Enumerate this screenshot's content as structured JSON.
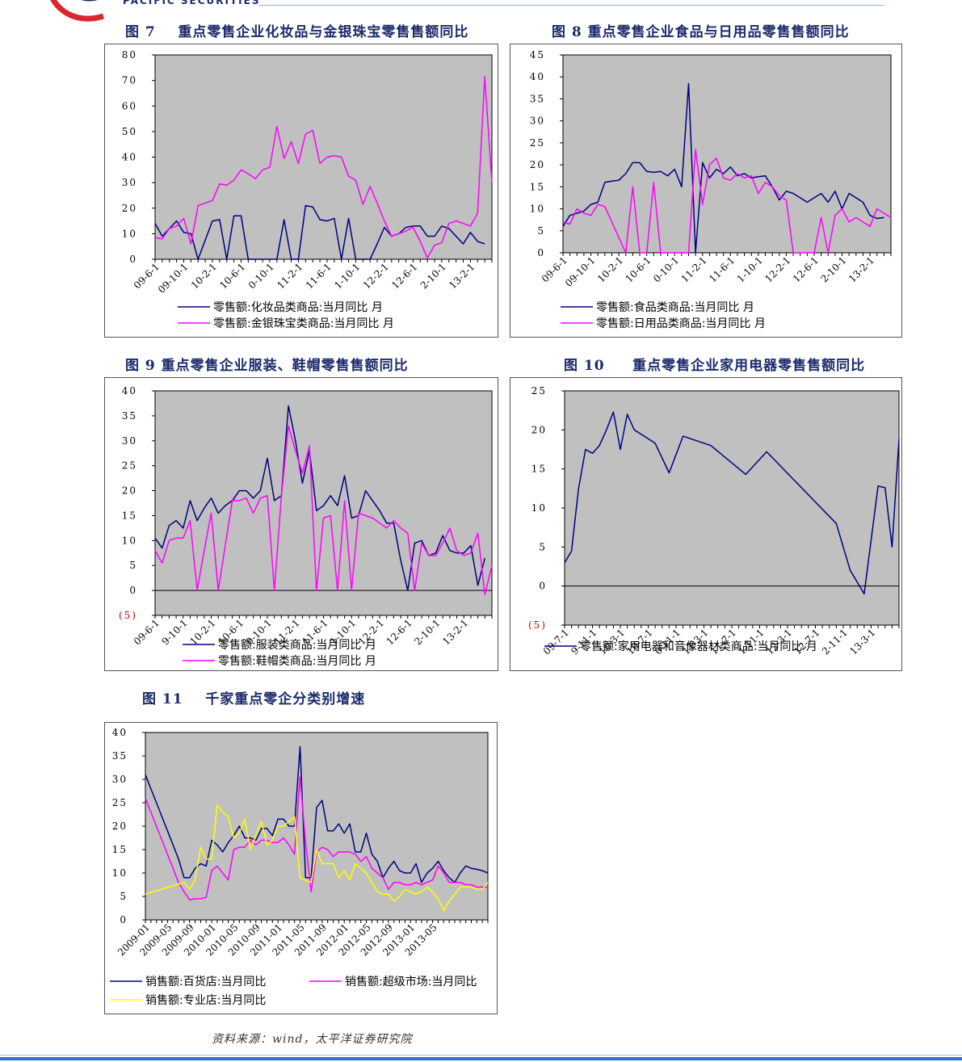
{
  "header": {
    "company_sub": "PACIFIC SECURITIES",
    "logo_red": "#d7282f",
    "logo_blue": "#1b2a6b"
  },
  "source_note": "资料来源：wind，太平洋证券研究院",
  "colors": {
    "plot_bg": "#c0c0c0",
    "navy": "#000080",
    "magenta": "#ff00ff",
    "yellow": "#ffff00"
  },
  "charts": [
    {
      "id": "fig7",
      "title": "图 7    重点零售企业化妆品与金银珠宝零售售额同比",
      "chart_data": {
        "type": "line",
        "ylim": [
          0,
          80
        ],
        "yticks": [
          "0",
          "10",
          "20",
          "30",
          "40",
          "50",
          "60",
          "70",
          "80"
        ],
        "x_labels": [
          "09-6-1",
          "09-10-1",
          "10-2-1",
          "10-6-1",
          "10-10-1",
          "11-2-1",
          "11-6-1",
          "11-10-1",
          "12-2-1",
          "12-6-1",
          "12-10-1",
          "13-2-1"
        ],
        "x_labels_display": [
          "09-6-1",
          "09-10-1",
          "10-2-1",
          "10-6-1",
          "0-10-1",
          "11-2-1",
          "11-6-1",
          "1-10-1",
          "12-2-1",
          "12-6-1",
          "2-10-1",
          "13-2-1"
        ],
        "series": [
          {
            "name": "零售额:化妆品类商品:当月同比  月",
            "color": "navy",
            "values": [
              14,
              9,
              12,
              15,
              10.5,
              10,
              0,
              7.5,
              15,
              15.5,
              0,
              17,
              17,
              0,
              0,
              0,
              0,
              0,
              15.5,
              0,
              0,
              21,
              20.5,
              15.5,
              15,
              16,
              0,
              16,
              0,
              0,
              0,
              6,
              12.5,
              9,
              10,
              12.5,
              13,
              13,
              9,
              9,
              13,
              12,
              9,
              6,
              10.5,
              7,
              6
            ]
          },
          {
            "name": "零售额:金银珠宝类商品:当月同比  月",
            "color": "magenta",
            "values": [
              8.5,
              8,
              12,
              13,
              16,
              6,
              21,
              22,
              23,
              29.5,
              29,
              31,
              35,
              33.5,
              31.5,
              35,
              36,
              52,
              39.5,
              46,
              37.5,
              49,
              50.5,
              37.5,
              40,
              40.5,
              40,
              32.5,
              31,
              21.5,
              28.5,
              22,
              15,
              9,
              10,
              11,
              12.5,
              7,
              0.5,
              5.5,
              6.5,
              14,
              15,
              14,
              13,
              18,
              71.5,
              30
            ]
          }
        ]
      }
    },
    {
      "id": "fig8",
      "title": "图 8 重点零售企业食品与日用品零售售额同比",
      "chart_data": {
        "type": "line",
        "ylim": [
          0,
          45
        ],
        "yticks": [
          "0",
          "5",
          "10",
          "15",
          "20",
          "25",
          "30",
          "35",
          "40",
          "45"
        ],
        "x_labels": [
          "09-6-1",
          "09-10-1",
          "10-2-1",
          "10-6-1",
          "10-10-1",
          "11-2-1",
          "11-6-1",
          "11-10-1",
          "12-2-1",
          "12-6-1",
          "12-10-1",
          "13-2-1"
        ],
        "x_labels_display": [
          "09-6-1",
          "09-10-1",
          "10-2-1",
          "10-6-1",
          "0-10-1",
          "11-2-1",
          "11-6-1",
          "1-10-1",
          "12-2-1",
          "12-6-1",
          "2-10-1",
          "13-2-1"
        ],
        "series": [
          {
            "name": "零售额:食品类商品:当月同比  月",
            "color": "navy",
            "values": [
              6,
              8.5,
              9,
              9.5,
              11,
              11.5,
              16,
              16.3,
              16.5,
              18,
              20.5,
              20.5,
              18.5,
              18.3,
              18.5,
              17.5,
              19,
              15,
              38.5,
              0,
              20.5,
              17,
              19,
              18,
              19.5,
              17.5,
              18,
              17,
              17.3,
              17.5,
              15,
              12,
              14,
              13.5,
              12.5,
              11.5,
              12.5,
              13.5,
              11.5,
              14,
              10,
              13.5,
              12.5,
              11.5,
              8.5,
              7.8,
              8
            ]
          },
          {
            "name": "零售额:日用品类商品:当月同比  月",
            "color": "magenta",
            "values": [
              7,
              6.5,
              10,
              9,
              8.5,
              11,
              10.5,
              7,
              3.5,
              0,
              15,
              0,
              0,
              16,
              0,
              0,
              0,
              0,
              0,
              23.5,
              11,
              20,
              21.5,
              17,
              16.5,
              18,
              17,
              17.5,
              13.5,
              16,
              15,
              13,
              12,
              0,
              0,
              0,
              0,
              8,
              0,
              8.5,
              10,
              7,
              8,
              7,
              6,
              10,
              9,
              8
            ]
          }
        ]
      }
    },
    {
      "id": "fig9",
      "title": "图 9 重点零售企业服装、鞋帽零售售额同比",
      "chart_data": {
        "type": "line",
        "ylim": [
          -5,
          40
        ],
        "yticks": [
          "(5)",
          "0",
          "5",
          "10",
          "15",
          "20",
          "25",
          "30",
          "35",
          "40"
        ],
        "x_labels": [
          "09-6-1",
          "09-10-1",
          "10-2-1",
          "10-6-1",
          "10-10-1",
          "11-2-1",
          "11-6-1",
          "11-10-1",
          "12-2-1",
          "12-6-1",
          "12-10-1",
          "13-2-1"
        ],
        "x_labels_display": [
          "09-6-1",
          "9-10-1",
          "10-2-1",
          "10-6-1",
          "0-10-1",
          "11-2-1",
          "11-6-1",
          "1-10-1",
          "12-2-1",
          "12-6-1",
          "2-10-1",
          "13-2-1"
        ],
        "series": [
          {
            "name": "零售额:服装类商品:当月同比  月",
            "color": "navy",
            "values": [
              10.5,
              8.5,
              13,
              14,
              12.5,
              18,
              14,
              16.5,
              18.5,
              15.5,
              17,
              18,
              20,
              20,
              18.5,
              20,
              26.5,
              18,
              19,
              37,
              30,
              21.5,
              28,
              16,
              17,
              19,
              17,
              23,
              14.5,
              15,
              20,
              18,
              16,
              13.5,
              13.5,
              6,
              0,
              9.5,
              10,
              7,
              7.5,
              11,
              8,
              7.5,
              7.5,
              9,
              1,
              6.5
            ]
          },
          {
            "name": "零售额:鞋帽类商品:当月同比  月",
            "color": "magenta",
            "values": [
              8,
              5.5,
              10,
              10.5,
              10.5,
              14,
              0,
              8,
              15.5,
              0,
              9,
              18,
              18,
              18.5,
              15.5,
              18.5,
              19,
              0,
              19,
              33,
              28,
              23.5,
              29,
              0,
              14.5,
              15,
              0,
              18,
              0,
              15.5,
              15,
              14.5,
              13.5,
              12.5,
              14,
              12.5,
              11.5,
              0,
              9.5,
              7,
              7,
              9.5,
              12.5,
              8,
              7,
              7.5,
              11.5,
              -0.8,
              5
            ]
          }
        ]
      }
    },
    {
      "id": "fig10",
      "title": "图 10     重点零售企业家用电器零售售额同比",
      "chart_data": {
        "type": "line",
        "ylim": [
          -5,
          25
        ],
        "yticks": [
          "(5)",
          "0",
          "5",
          "10",
          "15",
          "20",
          "25"
        ],
        "x_labels": [
          "09-7-1",
          "09-11-1",
          "10-3-1",
          "10-7-1",
          "10-11-1",
          "11-3-1",
          "11-7-1",
          "11-11-1",
          "12-3-1",
          "12-7-1",
          "12-11-1",
          "13-3-1"
        ],
        "x_labels_display": [
          "09-7-1",
          "9-11-1",
          "10-3-1",
          "10-7-1",
          "0-11-1",
          "11-3-1",
          "11-7-1",
          "1-11-1",
          "12-3-1",
          "12-7-1",
          "2-11-1",
          "13-3-1"
        ],
        "series": [
          {
            "name": "零售额:家用电器和音像器材类商品:当月同比  月",
            "color": "navy",
            "x": [
              0,
              1,
              2,
              3,
              4,
              5,
              6,
              7,
              8,
              9,
              10,
              13,
              15,
              17,
              21,
              26,
              29,
              39,
              41,
              43,
              45,
              46,
              47,
              48
            ],
            "values": [
              3,
              4.5,
              12.5,
              17.5,
              17,
              18,
              20,
              22.3,
              17.5,
              22,
              20,
              18.3,
              14.5,
              19.2,
              18,
              14.3,
              17.2,
              8,
              2,
              -1,
              12.8,
              12.6,
              5,
              18.8
            ]
          }
        ]
      }
    },
    {
      "id": "fig11",
      "title": "图 11    千家重点零企分类别增速",
      "chart_data": {
        "type": "line",
        "ylim": [
          0,
          40
        ],
        "yticks": [
          "0",
          "5",
          "10",
          "15",
          "20",
          "25",
          "30",
          "35",
          "40"
        ],
        "x_labels": [
          "2009-01",
          "2009-05",
          "2009-09",
          "2010-01",
          "2010-05",
          "2010-09",
          "2011-01",
          "2011-05",
          "2011-09",
          "2012-01",
          "2012-05",
          "2012-09",
          "2013-01",
          "2013-05"
        ],
        "series": [
          {
            "name": "销售额:百货店:当月同比",
            "color": "navy",
            "x": [
              0,
              1,
              2,
              3,
              4,
              5,
              6,
              7,
              8,
              9,
              10,
              11,
              12,
              13,
              14,
              15,
              16,
              17,
              18,
              19,
              20,
              21,
              22,
              23,
              24,
              25,
              26,
              27,
              28,
              29,
              30,
              31,
              32,
              33,
              34,
              35,
              36,
              37,
              38,
              39,
              40,
              41,
              42,
              43,
              44,
              45,
              46,
              47,
              48,
              49,
              50,
              51,
              52,
              53,
              54,
              55,
              56,
              57,
              58,
              59,
              60,
              61,
              62
            ],
            "values": [
              31,
              28,
              25,
              22,
              19,
              16,
              13,
              9,
              9,
              11,
              12,
              11.5,
              17,
              16,
              14.5,
              16.5,
              18,
              20,
              17.5,
              17.5,
              17,
              19.5,
              19.5,
              18,
              21.5,
              21.5,
              20,
              20,
              37,
              9,
              9,
              24,
              25.5,
              19,
              19,
              20.5,
              18.5,
              20.5,
              14.5,
              14.5,
              18.5,
              14,
              12.5,
              9,
              11,
              12.5,
              10.5,
              10,
              10,
              12,
              8,
              10,
              11,
              12.5,
              10.5,
              9,
              8,
              10,
              11.5,
              11,
              10.8,
              10.5,
              10
            ]
          },
          {
            "name": "销售额:超级市场:当月同比",
            "color": "magenta",
            "x": [
              0,
              1,
              2,
              3,
              4,
              5,
              6,
              7,
              8,
              9,
              10,
              11,
              12,
              13,
              14,
              15,
              16,
              17,
              18,
              19,
              20,
              21,
              22,
              23,
              24,
              25,
              26,
              27,
              28,
              29,
              30,
              31,
              32,
              33,
              34,
              35,
              36,
              37,
              38,
              39,
              40,
              41,
              42,
              43,
              44,
              45,
              46,
              47,
              48,
              49,
              50,
              51,
              52,
              53,
              54,
              55,
              56,
              57,
              58,
              59,
              60,
              61,
              62
            ],
            "values": [
              26,
              23,
              20,
              17,
              14,
              11,
              8,
              6,
              4.3,
              4.5,
              4.5,
              4.8,
              10.5,
              11.5,
              10,
              8.5,
              15,
              15.5,
              15.5,
              17,
              16,
              17,
              17,
              16.5,
              16.5,
              17.5,
              16,
              14,
              30.5,
              16.5,
              6,
              14.5,
              15.5,
              15,
              13.5,
              14.5,
              14.5,
              14.5,
              14,
              12.5,
              13.5,
              11,
              10,
              9,
              6.5,
              8,
              8,
              7.5,
              7.5,
              8,
              7.5,
              8,
              8.5,
              11.5,
              10,
              8,
              8,
              8,
              7.5,
              7.5,
              7,
              7,
              7
            ]
          },
          {
            "name": "销售额:专业店:当月同比",
            "color": "yellow",
            "x": [
              0,
              7,
              8,
              9,
              10,
              11,
              12,
              13,
              14,
              15,
              16,
              17,
              18,
              19,
              20,
              21,
              22,
              23,
              24,
              25,
              26,
              27,
              28,
              29,
              30,
              31,
              32,
              33,
              34,
              35,
              36,
              37,
              38,
              39,
              40,
              41,
              42,
              43,
              44,
              45,
              46,
              47,
              48,
              49,
              50,
              51,
              52,
              53,
              54,
              55,
              56,
              57,
              58,
              59,
              60,
              61,
              62
            ],
            "values": [
              5.5,
              8,
              6.5,
              8.5,
              15.5,
              13,
              13,
              24.5,
              23,
              22,
              17.5,
              18.5,
              21.5,
              15,
              18,
              21,
              16,
              17,
              20,
              20,
              21,
              22,
              9,
              8.5,
              8,
              15,
              12,
              12,
              12,
              9,
              10.5,
              8.5,
              12,
              11,
              10,
              8,
              6,
              5.5,
              5.5,
              4,
              5,
              6.5,
              6,
              5.5,
              6,
              7,
              6,
              4.5,
              2,
              4,
              5.5,
              7,
              7,
              7,
              6.5,
              6.5,
              8
            ]
          }
        ]
      }
    }
  ]
}
